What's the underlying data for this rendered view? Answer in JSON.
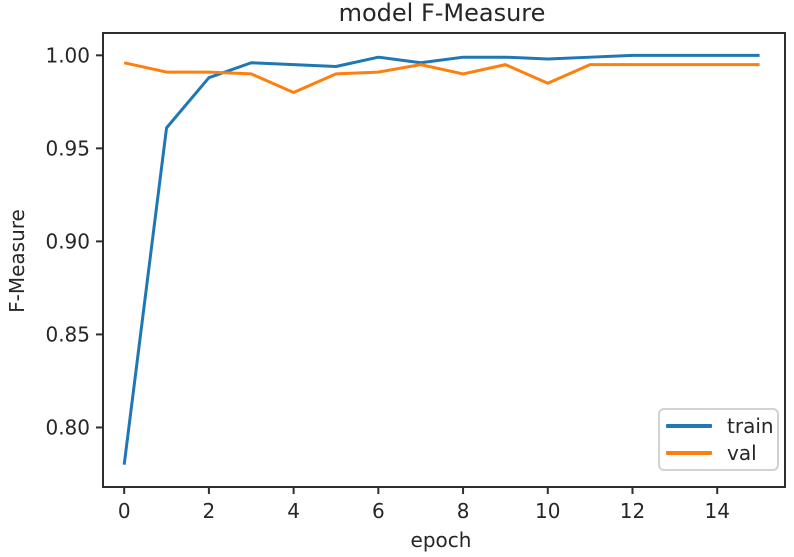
{
  "chart_data": {
    "type": "line",
    "title": "model F-Measure",
    "xlabel": "epoch",
    "ylabel": "F-Measure",
    "x": [
      0,
      1,
      2,
      3,
      4,
      5,
      6,
      7,
      8,
      9,
      10,
      11,
      12,
      13,
      14,
      15
    ],
    "series": [
      {
        "name": "train",
        "color": "#1f77b4",
        "values": [
          0.78,
          0.961,
          0.988,
          0.996,
          0.995,
          0.994,
          0.999,
          0.996,
          0.999,
          0.999,
          0.998,
          0.999,
          1.0,
          1.0,
          1.0,
          1.0
        ]
      },
      {
        "name": "val",
        "color": "#ff7f0e",
        "values": [
          0.996,
          0.991,
          0.991,
          0.99,
          0.98,
          0.99,
          0.991,
          0.995,
          0.99,
          0.995,
          0.985,
          0.995,
          0.995,
          0.995,
          0.995,
          0.995
        ]
      }
    ],
    "xticks": [
      0,
      2,
      4,
      6,
      8,
      10,
      12,
      14
    ],
    "yticks": [
      0.8,
      0.85,
      0.9,
      0.95,
      1.0
    ],
    "xlim": [
      -0.5,
      15.6
    ],
    "ylim": [
      0.768,
      1.012
    ],
    "grid": false,
    "legend": {
      "position": "lower right",
      "entries": [
        "train",
        "val"
      ]
    }
  }
}
